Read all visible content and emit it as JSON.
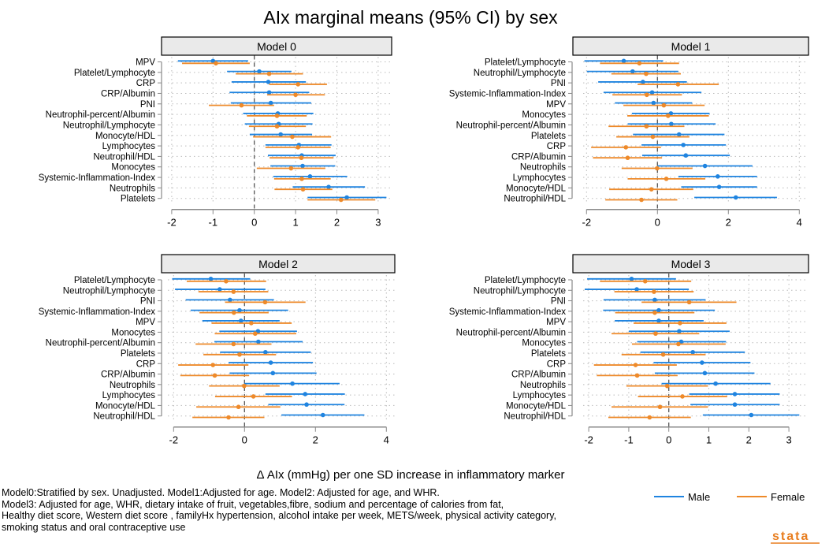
{
  "chart_data": {
    "type": "forest",
    "title": "AIx marginal means (95% CI) by sex",
    "xlabel": "Δ AIx (mmHg) per one SD increase in inflammatory marker",
    "legend": {
      "position": "bottom-right",
      "entries": [
        "Male",
        "Female"
      ]
    },
    "colors": {
      "Male": "#1f84e0",
      "Female": "#ee8a2a"
    },
    "reference_line": 0,
    "grid": true,
    "notes": [
      "Model0:Stratified by sex. Unadjusted.    Model1:Adjusted for age.    Model2: Adjusted for age, and WHR.",
      "Model3: Adjusted for age, WHR, dietary intake of fruit, vegetables,fibre, sodium and percentage of calories from fat,",
      "Healthy diet score, Western diet score , familyHx hypertension, alcohol intake per week, METS/week, physical activity category,",
      "smoking status and oral contraceptive use"
    ],
    "logo_text": "stata",
    "panels": [
      {
        "title": "Model 0",
        "xlim": [
          -2.1,
          3.3
        ],
        "xticks": [
          "-2",
          "-1",
          "0",
          "1",
          "2",
          "3"
        ],
        "xtick_values": [
          -2,
          -1,
          0,
          1,
          2,
          3
        ],
        "rows": [
          {
            "label": "MPV",
            "male": [
              -1.0,
              -1.85,
              -0.15
            ],
            "female": [
              -0.93,
              -1.75,
              -0.11
            ]
          },
          {
            "label": "Platelet/Lymphocyte",
            "male": [
              0.12,
              -0.66,
              0.9
            ],
            "female": [
              0.36,
              -0.45,
              1.18
            ]
          },
          {
            "label": "CRP",
            "male": [
              0.34,
              -0.55,
              1.25
            ],
            "female": [
              1.06,
              0.36,
              1.76
            ]
          },
          {
            "label": "CRP/Albumin",
            "male": [
              0.36,
              -0.6,
              1.33
            ],
            "female": [
              1.0,
              0.31,
              1.71
            ]
          },
          {
            "label": "PNI",
            "male": [
              0.4,
              -0.57,
              1.38
            ],
            "female": [
              -0.31,
              -1.1,
              0.48
            ]
          },
          {
            "label": "Neutrophil-percent/Albumin",
            "male": [
              0.57,
              -0.27,
              1.43
            ],
            "female": [
              0.55,
              -0.18,
              1.27
            ]
          },
          {
            "label": "Neutrophil/Lymphocyte",
            "male": [
              0.59,
              -0.23,
              1.41
            ],
            "female": [
              0.55,
              -0.13,
              1.25
            ]
          },
          {
            "label": "Monocyte/HDL",
            "male": [
              0.64,
              -0.11,
              1.4
            ],
            "female": [
              0.92,
              -0.03,
              1.86
            ]
          },
          {
            "label": "Lymphocytes",
            "male": [
              1.08,
              0.27,
              1.87
            ],
            "female": [
              1.06,
              0.27,
              1.85
            ]
          },
          {
            "label": "Neutrophil/HDL",
            "male": [
              1.15,
              0.33,
              1.97
            ],
            "female": [
              1.14,
              0.37,
              1.92
            ]
          },
          {
            "label": "Monocytes",
            "male": [
              1.17,
              0.39,
              1.96
            ],
            "female": [
              0.89,
              0.06,
              1.72
            ]
          },
          {
            "label": "Systemic-Inflammation-Index",
            "male": [
              1.35,
              0.46,
              2.25
            ],
            "female": [
              1.15,
              0.48,
              1.85
            ]
          },
          {
            "label": "Neutrophils",
            "male": [
              1.8,
              0.93,
              2.68
            ],
            "female": [
              1.18,
              0.49,
              1.89
            ]
          },
          {
            "label": "Platelets",
            "male": [
              2.24,
              1.29,
              3.2
            ],
            "female": [
              2.1,
              1.29,
              2.93
            ]
          }
        ]
      },
      {
        "title": "Model 1",
        "xlim": [
          -2.1,
          4.2
        ],
        "xticks": [
          "-2",
          "0",
          "2",
          "4"
        ],
        "xtick_values": [
          -2,
          0,
          2,
          4
        ],
        "rows": [
          {
            "label": "Platelet/Lymphocyte",
            "male": [
              -0.95,
              -2.06,
              0.16
            ],
            "female": [
              -0.51,
              -1.62,
              0.61
            ]
          },
          {
            "label": "Neutrophil/Lymphocyte",
            "male": [
              -0.7,
              -1.99,
              0.59
            ],
            "female": [
              -0.32,
              -1.3,
              0.66
            ]
          },
          {
            "label": "PNI",
            "male": [
              -0.41,
              -1.67,
              0.83
            ],
            "female": [
              0.58,
              -0.56,
              1.73
            ]
          },
          {
            "label": "Systemic-Inflammation-Index",
            "male": [
              -0.15,
              -1.52,
              1.24
            ],
            "female": [
              -0.3,
              -1.27,
              0.69
            ]
          },
          {
            "label": "MPV",
            "male": [
              -0.11,
              -1.2,
              0.98
            ],
            "female": [
              0.18,
              -0.96,
              1.33
            ]
          },
          {
            "label": "Monocytes",
            "male": [
              0.38,
              -0.72,
              1.47
            ],
            "female": [
              0.3,
              -0.85,
              1.45
            ]
          },
          {
            "label": "Neutrophil-percent/Albumin",
            "male": [
              0.39,
              -0.84,
              1.64
            ],
            "female": [
              -0.31,
              -1.38,
              0.76
            ]
          },
          {
            "label": "Platelets",
            "male": [
              0.61,
              -0.69,
              1.89
            ],
            "female": [
              -0.13,
              -1.16,
              0.9
            ]
          },
          {
            "label": "CRP",
            "male": [
              0.73,
              -0.45,
              1.93
            ],
            "female": [
              -0.89,
              -1.87,
              0.1
            ]
          },
          {
            "label": "CRP/Albumin",
            "male": [
              0.8,
              -0.43,
              2.04
            ],
            "female": [
              -0.84,
              -1.82,
              0.13
            ]
          },
          {
            "label": "Neutrophils",
            "male": [
              1.34,
              0.0,
              2.68
            ],
            "female": [
              -0.01,
              -1.01,
              0.99
            ]
          },
          {
            "label": "Lymphocytes",
            "male": [
              1.7,
              0.59,
              2.81
            ],
            "female": [
              0.25,
              -0.84,
              1.35
            ]
          },
          {
            "label": "Monocyte/HDL",
            "male": [
              1.74,
              0.67,
              2.81
            ],
            "female": [
              -0.17,
              -1.36,
              1.01
            ]
          },
          {
            "label": "Neutrophil/HDL",
            "male": [
              2.21,
              1.04,
              3.37
            ],
            "female": [
              -0.45,
              -1.47,
              0.56
            ]
          }
        ]
      },
      {
        "title": "Model 2",
        "xlim": [
          -2.1,
          4.2
        ],
        "xticks": [
          "-2",
          "0",
          "2",
          "4"
        ],
        "xtick_values": [
          -2,
          0,
          2,
          4
        ],
        "rows": [
          {
            "label": "Platelet/Lymphocyte",
            "male": [
              -0.95,
              -2.04,
              0.16
            ],
            "female": [
              -0.52,
              -1.63,
              0.61
            ]
          },
          {
            "label": "Neutrophil/Lymphocyte",
            "male": [
              -0.7,
              -1.96,
              0.59
            ],
            "female": [
              -0.31,
              -1.3,
              0.67
            ]
          },
          {
            "label": "PNI",
            "male": [
              -0.41,
              -1.66,
              0.83
            ],
            "female": [
              0.58,
              -0.55,
              1.72
            ]
          },
          {
            "label": "Systemic-Inflammation-Index",
            "male": [
              -0.14,
              -1.52,
              1.23
            ],
            "female": [
              -0.3,
              -1.27,
              0.68
            ]
          },
          {
            "label": "MPV",
            "male": [
              -0.1,
              -1.19,
              0.99
            ],
            "female": [
              0.19,
              -0.93,
              1.33
            ]
          },
          {
            "label": "Monocytes",
            "male": [
              0.38,
              -0.71,
              1.48
            ],
            "female": [
              0.3,
              -0.84,
              1.46
            ]
          },
          {
            "label": "Neutrophil-percent/Albumin",
            "male": [
              0.39,
              -0.85,
              1.64
            ],
            "female": [
              -0.31,
              -1.38,
              0.76
            ]
          },
          {
            "label": "Platelets",
            "male": [
              0.59,
              -0.69,
              1.87
            ],
            "female": [
              -0.14,
              -1.16,
              0.89
            ]
          },
          {
            "label": "CRP",
            "male": [
              0.74,
              -0.45,
              1.93
            ],
            "female": [
              -0.89,
              -1.87,
              0.11
            ]
          },
          {
            "label": "CRP/Albumin",
            "male": [
              0.8,
              -0.42,
              2.03
            ],
            "female": [
              -0.84,
              -1.81,
              0.13
            ]
          },
          {
            "label": "Neutrophils",
            "male": [
              1.35,
              0.0,
              2.68
            ],
            "female": [
              -0.01,
              -1.0,
              0.99
            ]
          },
          {
            "label": "Lymphocytes",
            "male": [
              1.71,
              0.59,
              2.83
            ],
            "female": [
              0.25,
              -0.83,
              1.34
            ]
          },
          {
            "label": "Monocyte/HDL",
            "male": [
              1.75,
              0.67,
              2.82
            ],
            "female": [
              -0.17,
              -1.36,
              1.01
            ]
          },
          {
            "label": "Neutrophil/HDL",
            "male": [
              2.21,
              1.04,
              3.38
            ],
            "female": [
              -0.45,
              -1.47,
              0.56
            ]
          }
        ]
      },
      {
        "title": "Model 3",
        "xlim": [
          -2.1,
          3.3
        ],
        "xticks": [
          "-2",
          "-1",
          "0",
          "1",
          "2",
          "3"
        ],
        "xtick_values": [
          -2,
          -1,
          0,
          1,
          2,
          3
        ],
        "rows": [
          {
            "label": "Platelet/Lymphocyte",
            "male": [
              -0.93,
              -2.04,
              0.18
            ],
            "female": [
              -0.59,
              -1.72,
              0.56
            ]
          },
          {
            "label": "Neutrophil/Lymphocyte",
            "male": [
              -0.8,
              -2.1,
              0.5
            ],
            "female": [
              -0.37,
              -1.36,
              0.62
            ]
          },
          {
            "label": "PNI",
            "male": [
              -0.35,
              -1.63,
              0.92
            ],
            "female": [
              0.51,
              -0.68,
              1.69
            ]
          },
          {
            "label": "Systemic-Inflammation-Index",
            "male": [
              -0.25,
              -1.64,
              1.15
            ],
            "female": [
              -0.35,
              -1.34,
              0.64
            ]
          },
          {
            "label": "MPV",
            "male": [
              -0.25,
              -1.35,
              0.87
            ],
            "female": [
              0.28,
              -0.88,
              1.44
            ]
          },
          {
            "label": "Neutrophil-percent/Albumin",
            "male": [
              0.26,
              -1.0,
              1.52
            ],
            "female": [
              -0.33,
              -1.43,
              0.76
            ]
          },
          {
            "label": "Monocytes",
            "male": [
              0.31,
              -0.79,
              1.43
            ],
            "female": [
              0.24,
              -0.92,
              1.42
            ]
          },
          {
            "label": "Platelets",
            "male": [
              0.6,
              -0.71,
              1.9
            ],
            "female": [
              -0.14,
              -1.18,
              0.92
            ]
          },
          {
            "label": "CRP",
            "male": [
              0.83,
              -0.38,
              2.04
            ],
            "female": [
              -0.83,
              -1.87,
              0.2
            ]
          },
          {
            "label": "CRP/Albumin",
            "male": [
              0.9,
              -0.35,
              2.14
            ],
            "female": [
              -0.79,
              -1.8,
              0.22
            ]
          },
          {
            "label": "Neutrophils",
            "male": [
              1.17,
              -0.18,
              2.54
            ],
            "female": [
              -0.04,
              -1.06,
              0.98
            ]
          },
          {
            "label": "Lymphocytes",
            "male": [
              1.65,
              0.51,
              2.77
            ],
            "female": [
              0.34,
              -0.77,
              1.46
            ]
          },
          {
            "label": "Monocyte/HDL",
            "male": [
              1.65,
              0.54,
              2.77
            ],
            "female": [
              -0.22,
              -1.43,
              0.98
            ]
          },
          {
            "label": "Neutrophil/HDL",
            "male": [
              2.06,
              0.85,
              3.26
            ],
            "female": [
              -0.48,
              -1.51,
              0.55
            ]
          }
        ]
      }
    ]
  }
}
